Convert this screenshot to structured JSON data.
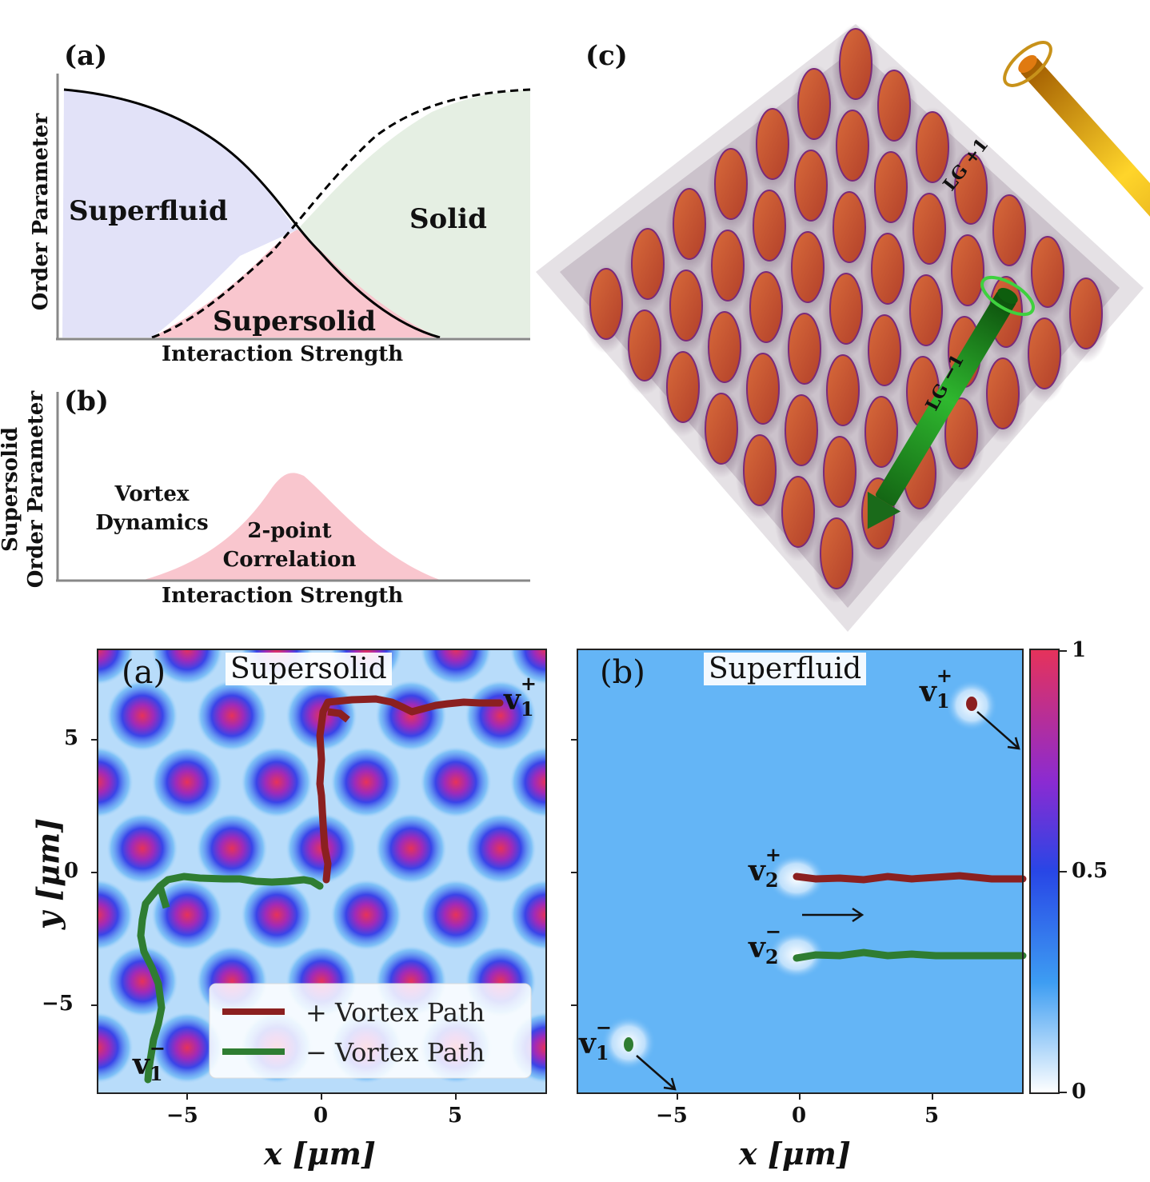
{
  "top_a": {
    "panel_label": "(a)",
    "y_axis_label": "Order Parameter",
    "x_axis_label": "Interaction Strength",
    "regions": {
      "superfluid": "Superfluid",
      "solid": "Solid",
      "supersolid": "Supersolid"
    },
    "colors": {
      "superfluid": "#e2e2f8",
      "solid": "#e5efe3",
      "supersolid": "#f9c6ce"
    }
  },
  "top_b": {
    "panel_label": "(b)",
    "y_axis_label_line1": "Supersolid",
    "y_axis_label_line2": "Order Parameter",
    "x_axis_label": "Interaction Strength",
    "left_text_line1": "Vortex",
    "left_text_line2": "Dynamics",
    "peak_text_line1": "2-point",
    "peak_text_line2": "Correlation",
    "colors": {
      "peak": "#f9c6ce"
    }
  },
  "top_c": {
    "panel_label": "(c)",
    "beam_plus_label": "LG +1",
    "beam_minus_label": "LG −1",
    "colors": {
      "beam_plus": "#f0c020",
      "beam_minus": "#1f8a1f",
      "droplet": "#c8542c",
      "halo": "#6a2a6a"
    }
  },
  "bottom_a": {
    "panel_label": "(a)",
    "title": "Supersolid",
    "x_ticks": [
      "−5",
      "0",
      "5"
    ],
    "y_ticks": [
      "5",
      "0",
      "−5"
    ],
    "x_axis_label": "x [μm]",
    "y_axis_label": "y [μm]",
    "vortex_top": "v",
    "vortex_top_sub": "1",
    "vortex_top_sup": "+",
    "vortex_bottom": "v",
    "vortex_bottom_sub": "1",
    "vortex_bottom_sup": "−",
    "legend": [
      {
        "label": "+ Vortex Path",
        "color": "#8b2020"
      },
      {
        "label": "− Vortex Path",
        "color": "#2f7d32"
      }
    ]
  },
  "bottom_b": {
    "panel_label": "(b)",
    "title": "Superfluid",
    "x_ticks": [
      "−5",
      "0",
      "5"
    ],
    "x_axis_label": "x [μm]",
    "v1p": {
      "base": "v",
      "sub": "1",
      "sup": "+"
    },
    "v2p": {
      "base": "v",
      "sub": "2",
      "sup": "+"
    },
    "v2m": {
      "base": "v",
      "sub": "2",
      "sup": "−"
    },
    "v1m": {
      "base": "v",
      "sub": "1",
      "sup": "−"
    },
    "background": "#64b5f6"
  },
  "colorbar": {
    "ticks": [
      "1",
      "0.5",
      "0"
    ],
    "colors": [
      "#e6325a",
      "#8a2bd2",
      "#2846e6",
      "#3d9df2",
      "#ffffff"
    ]
  }
}
